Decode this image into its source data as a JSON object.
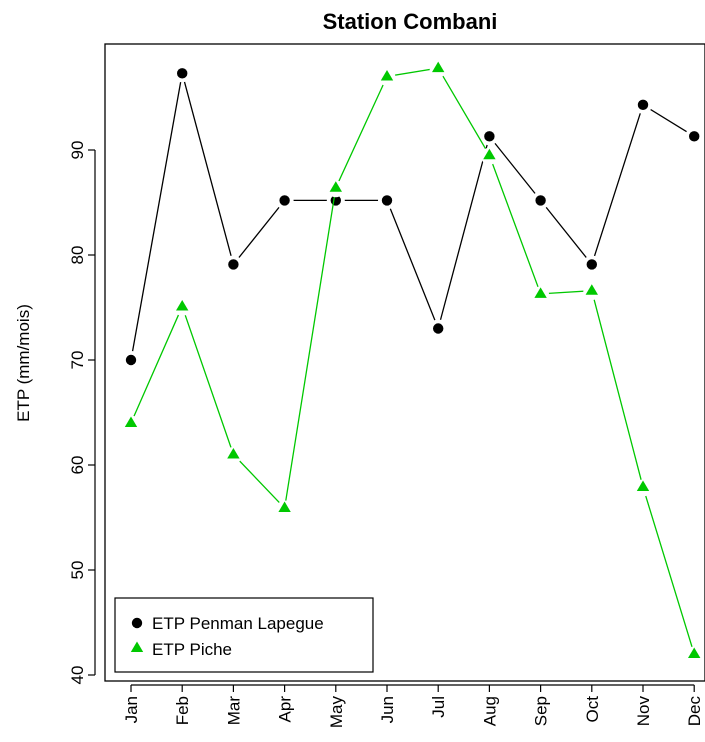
{
  "chart_data": {
    "type": "line",
    "title": "Station Combani",
    "xlabel": "",
    "ylabel": "ETP (mm/mois)",
    "categories": [
      "Jan",
      "Feb",
      "Mar",
      "Apr",
      "May",
      "Jun",
      "Jul",
      "Aug",
      "Sep",
      "Oct",
      "Nov",
      "Dec"
    ],
    "ylim": [
      40,
      98
    ],
    "yticks": [
      40,
      50,
      60,
      70,
      80,
      90
    ],
    "legend_position": "bottom-left",
    "grid": false,
    "series": [
      {
        "name": "ETP Penman Lapegue",
        "color": "#000000",
        "marker": "circle",
        "values": [
          70.0,
          97.3,
          79.1,
          85.2,
          85.2,
          85.2,
          73.0,
          91.3,
          85.2,
          79.1,
          94.3,
          91.3
        ]
      },
      {
        "name": "ETP Piche",
        "color": "#00C800",
        "marker": "triangle",
        "values": [
          64.0,
          75.1,
          61.0,
          55.9,
          86.4,
          97.0,
          97.8,
          89.5,
          76.3,
          76.6,
          57.9,
          42.0
        ]
      }
    ]
  }
}
